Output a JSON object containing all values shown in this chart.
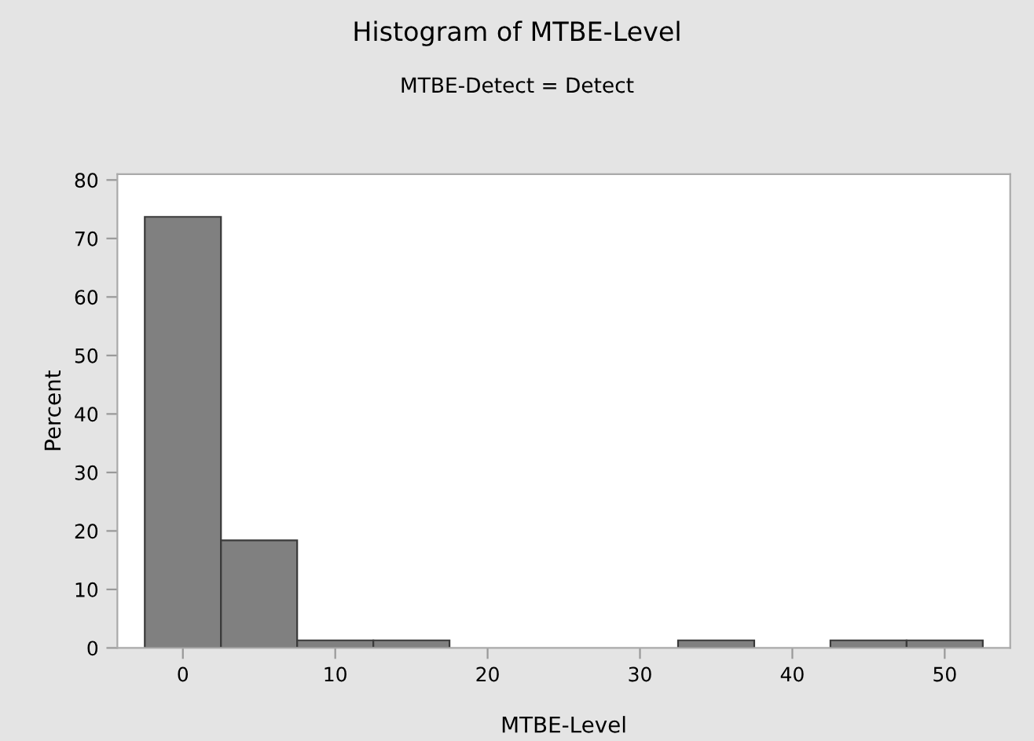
{
  "chart_data": {
    "type": "histogram",
    "title": "Histogram of MTBE-Level",
    "subtitle": "MTBE-Detect = Detect",
    "xlabel": "MTBE-Level",
    "ylabel": "Percent",
    "bins": [
      -2.5,
      2.5,
      7.5,
      12.5,
      17.5,
      22.5,
      27.5,
      32.5,
      37.5,
      42.5,
      47.5,
      52.5
    ],
    "values": [
      73.7,
      18.4,
      1.3,
      1.3,
      0,
      0,
      0,
      1.3,
      0,
      1.3,
      1.3
    ],
    "color": "#808080",
    "xlim": [
      -4.3,
      54.3
    ],
    "xticks": [
      0,
      10,
      20,
      30,
      40,
      50
    ],
    "ylim": [
      0,
      81
    ],
    "yticks": [
      0,
      10,
      20,
      30,
      40,
      50,
      60,
      70,
      80
    ],
    "grid": false
  }
}
